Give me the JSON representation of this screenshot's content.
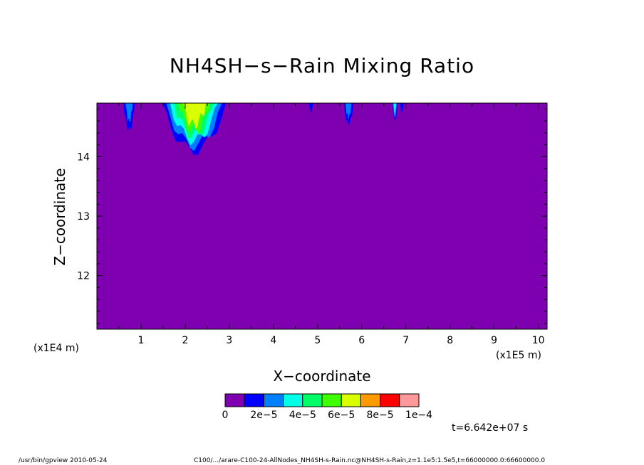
{
  "title": "NH4SH−s−Rain Mixing Ratio",
  "xlabel": "X−coordinate",
  "ylabel": "Z−coordinate",
  "x_unit_left": "(x1E4 m)",
  "x_unit_right": "(x1E5 m)",
  "time_label": "t=6.642e+07 s",
  "footer_left": "/usr/bin/gpview   2010-05-24",
  "footer_right": "C100/.../arare-C100-24-AllNodes_NH4SH-s-Rain.nc@NH4SH-s-Rain,z=1.1e5:1.5e5,t=66000000.0:66600000.0",
  "chart_data": {
    "type": "heatmap",
    "title": "NH4SH−s−Rain Mixing Ratio",
    "xlabel": "X−coordinate",
    "ylabel": "Z−coordinate",
    "x_ticks": [
      "1",
      "2",
      "3",
      "4",
      "5",
      "6",
      "7",
      "8",
      "9",
      "10"
    ],
    "y_ticks": [
      "12",
      "13",
      "14"
    ],
    "xlim": [
      0,
      10.2
    ],
    "ylim": [
      11.1,
      14.9
    ],
    "background_color": "#7f00b0",
    "levels": [
      0,
      1e-05,
      2e-05,
      3e-05,
      4e-05,
      5e-05,
      6e-05,
      7e-05,
      8e-05,
      9e-05,
      0.0001
    ],
    "colorbar": {
      "colors": [
        "#7f00b0",
        "#0000ff",
        "#0080ff",
        "#00ffe6",
        "#00ff66",
        "#40ff00",
        "#d9ff00",
        "#ff9900",
        "#ff0000",
        "#ff9999"
      ],
      "labels": [
        "0",
        "2e−5",
        "4e−5",
        "6e−5",
        "8e−5",
        "1e−4"
      ]
    },
    "features": [
      {
        "x_center": 0.73,
        "half_width": 0.13,
        "z_bottom": 14.45,
        "peak_level": 2
      },
      {
        "x_center": 2.2,
        "half_width": 0.72,
        "z_bottom": 14.1,
        "peak_level": 6
      },
      {
        "x_center": 4.85,
        "half_width": 0.05,
        "z_bottom": 14.75,
        "peak_level": 1
      },
      {
        "x_center": 5.7,
        "half_width": 0.11,
        "z_bottom": 14.55,
        "peak_level": 2
      },
      {
        "x_center": 6.75,
        "half_width": 0.06,
        "z_bottom": 14.6,
        "peak_level": 3
      },
      {
        "x_center": 6.91,
        "half_width": 0.04,
        "z_bottom": 14.75,
        "peak_level": 1
      }
    ]
  }
}
